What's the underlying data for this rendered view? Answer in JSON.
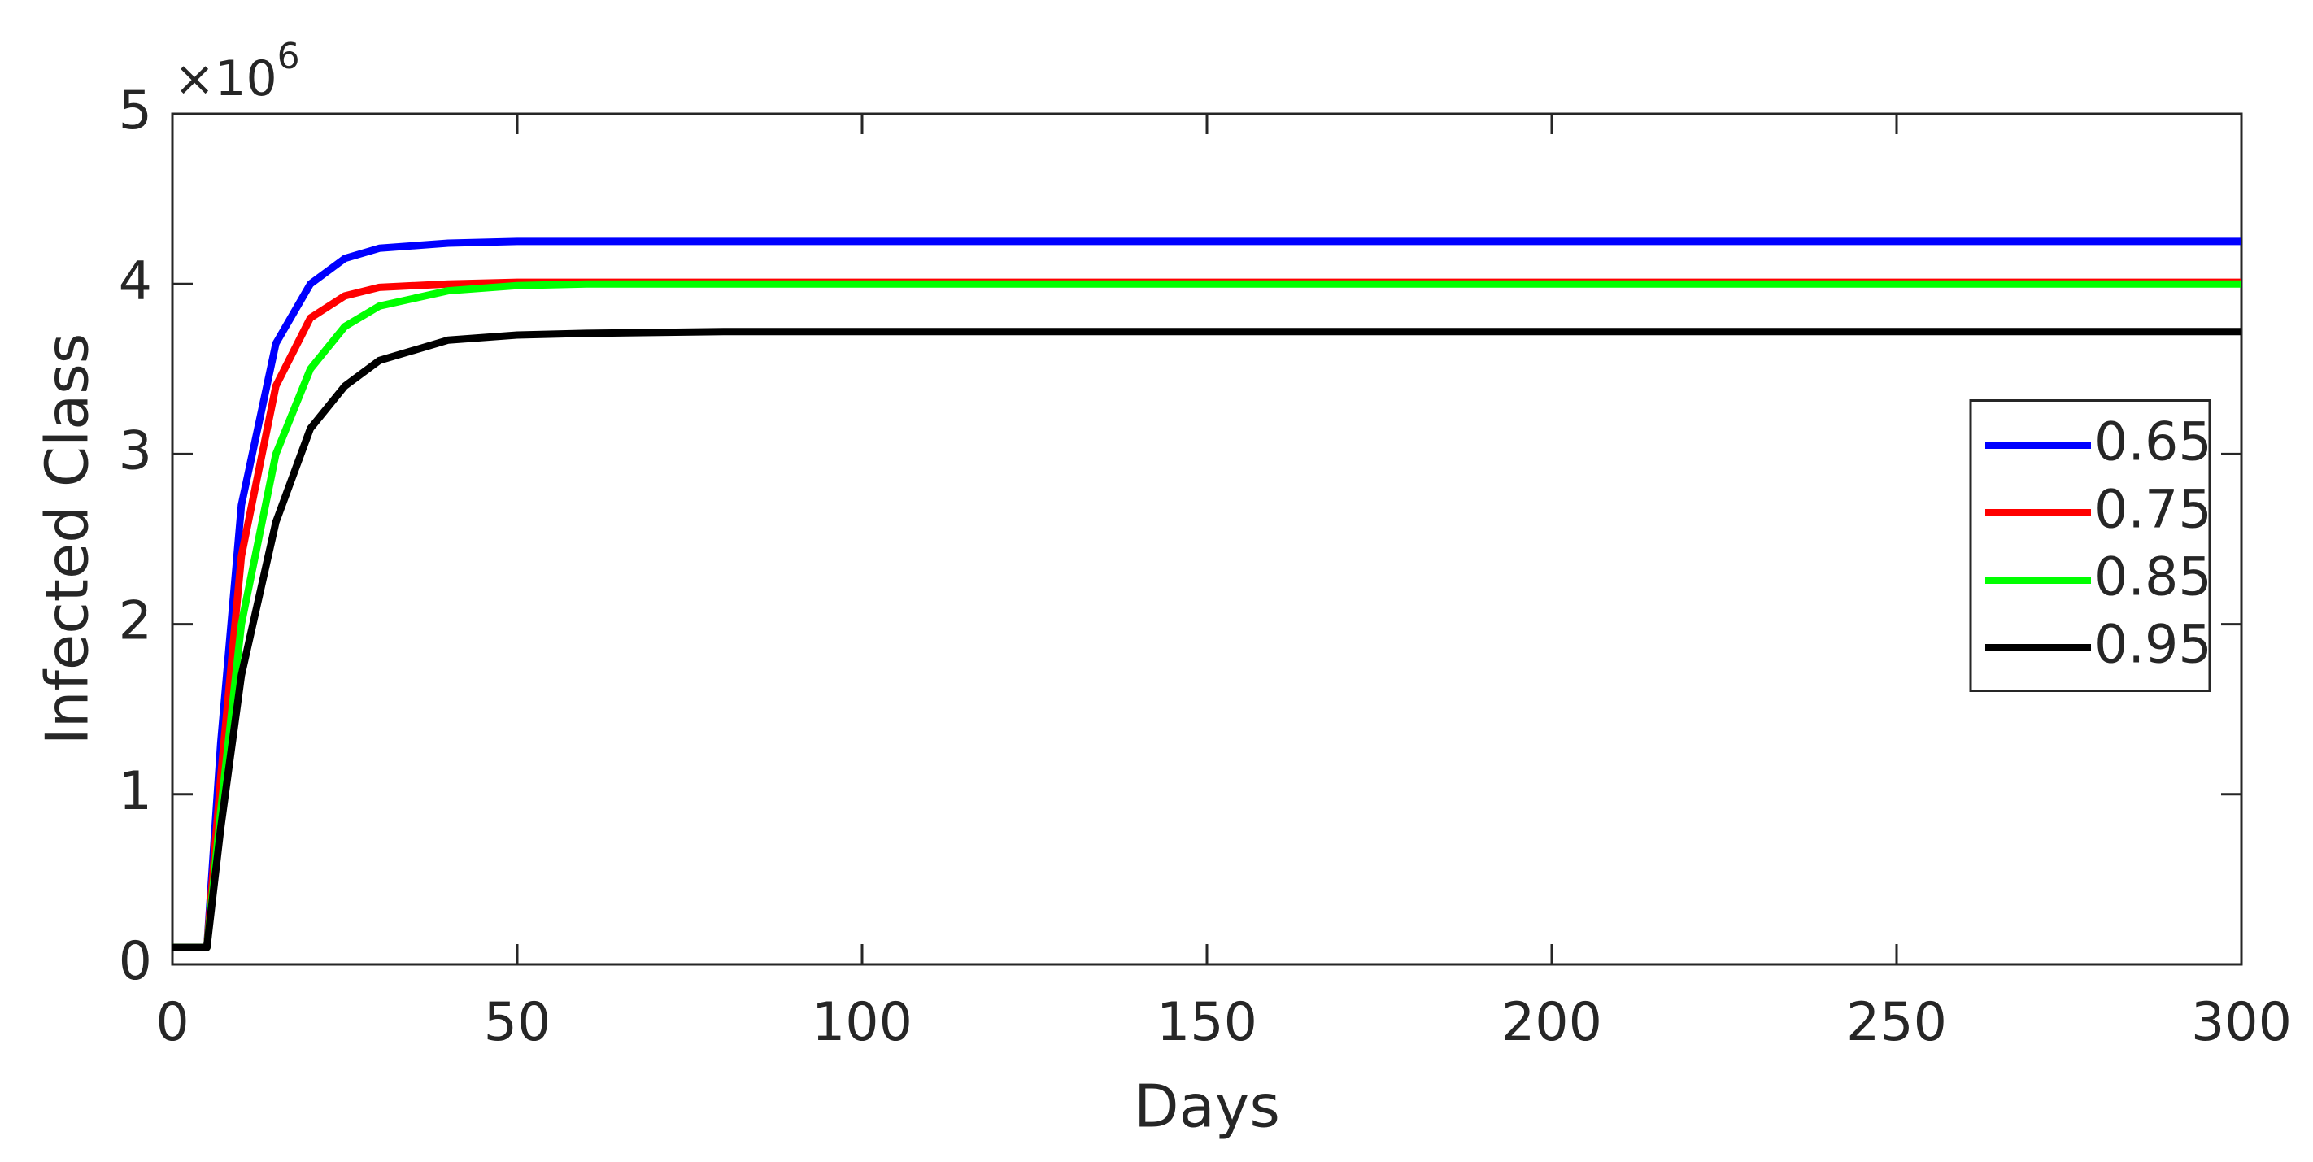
{
  "chart_data": {
    "type": "line",
    "x_label": "Days",
    "y_label": "Infected Class",
    "y_scale_base": "×10",
    "y_scale_exponent": "6",
    "x": [
      0,
      5,
      7,
      10,
      15,
      20,
      25,
      30,
      40,
      50,
      60,
      80,
      100,
      150,
      200,
      250,
      300
    ],
    "series": [
      {
        "name": "0.65",
        "color": "#0000ff",
        "values": [
          0.1,
          0.1,
          1.3,
          2.7,
          3.65,
          4.0,
          4.15,
          4.21,
          4.24,
          4.25,
          4.25,
          4.25,
          4.25,
          4.25,
          4.25,
          4.25,
          4.25
        ]
      },
      {
        "name": "0.75",
        "color": "#ff0000",
        "values": [
          0.1,
          0.1,
          1.1,
          2.4,
          3.4,
          3.8,
          3.93,
          3.98,
          4.0,
          4.01,
          4.01,
          4.01,
          4.01,
          4.01,
          4.01,
          4.01,
          4.01
        ]
      },
      {
        "name": "0.85",
        "color": "#00ff00",
        "values": [
          0.1,
          0.1,
          0.9,
          2.0,
          3.0,
          3.5,
          3.75,
          3.87,
          3.96,
          3.99,
          4.0,
          4.0,
          4.0,
          4.0,
          4.0,
          4.0,
          4.0
        ]
      },
      {
        "name": "0.95",
        "color": "#000000",
        "values": [
          0.1,
          0.1,
          0.8,
          1.7,
          2.6,
          3.15,
          3.4,
          3.55,
          3.67,
          3.7,
          3.71,
          3.72,
          3.72,
          3.72,
          3.72,
          3.72,
          3.72
        ]
      }
    ],
    "xlim": [
      0,
      300
    ],
    "xticks": [
      0,
      50,
      100,
      150,
      200,
      250,
      300
    ],
    "ylim": [
      0,
      5
    ],
    "yticks": [
      0,
      1,
      2,
      3,
      4,
      5
    ],
    "grid": false,
    "legend": "east"
  }
}
